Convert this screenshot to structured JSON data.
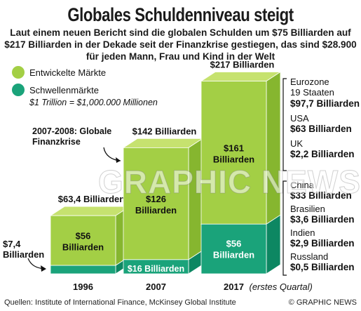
{
  "title": "Globales Schuldenniveau steigt",
  "subtitle": "Laut einem neuen Bericht sind die globalen Schulden um $75 Billiarden auf $217 Billiarden in der Dekade seit der Finanzkrise gestiegen, das sind $28.900 für jeden Mann, Frau und Kind in der Welt",
  "legend": {
    "developed": "Entwickelte Märkte",
    "emerging": "Schwellenmärkte",
    "note": "$1 Trillion = $1,000.000 Millionen"
  },
  "colors": {
    "developed": "#a3cf45",
    "developed_light": "#c6e26f",
    "developed_dark": "#86b62f",
    "emerging": "#1aa37a",
    "emerging_light": "#4cc79d",
    "emerging_dark": "#0d8762"
  },
  "annotation": "2007-2008: Globale Finanzkrise",
  "watermark": "GRAPHIC NEWS",
  "footer": {
    "source": "Quellen: Institute of International Finance, McKinsey Global Institute",
    "credit": "© GRAPHIC NEWS"
  },
  "chart_data": {
    "type": "bar",
    "categories": [
      "1996",
      "2007",
      "2017"
    ],
    "category_note": "(erstes Quartal)",
    "series": [
      {
        "name": "Entwickelte Märkte",
        "values": [
          56,
          126,
          161
        ],
        "labels": [
          "$56 Billiarden",
          "$126 Billiarden",
          "$161 Billiarden"
        ]
      },
      {
        "name": "Schwellenmärkte",
        "values": [
          7.4,
          16,
          56
        ],
        "labels": [
          "$7,4 Billiarden",
          "$16 Billiarden",
          "$56 Billiarden"
        ]
      }
    ],
    "totals": [
      63.4,
      142,
      217
    ],
    "total_labels": [
      "$63,4 Billiarden",
      "$142 Billiarden",
      "$217 Billiarden"
    ],
    "breakdown_2017": {
      "developed": [
        {
          "name": "Eurozone",
          "sub": "19 Staaten",
          "value": "$97,7 Billiarden"
        },
        {
          "name": "USA",
          "value": "$63 Billiarden"
        },
        {
          "name": "UK",
          "value": "$2,2 Billiarden"
        }
      ],
      "emerging": [
        {
          "name": "China",
          "value": "$33 Billiarden"
        },
        {
          "name": "Brasilien",
          "value": "$3,6 Billiarden"
        },
        {
          "name": "Indien",
          "value": "$2,9 Billiarden"
        },
        {
          "name": "Russland",
          "value": "$0,5 Billiarden"
        }
      ]
    }
  }
}
